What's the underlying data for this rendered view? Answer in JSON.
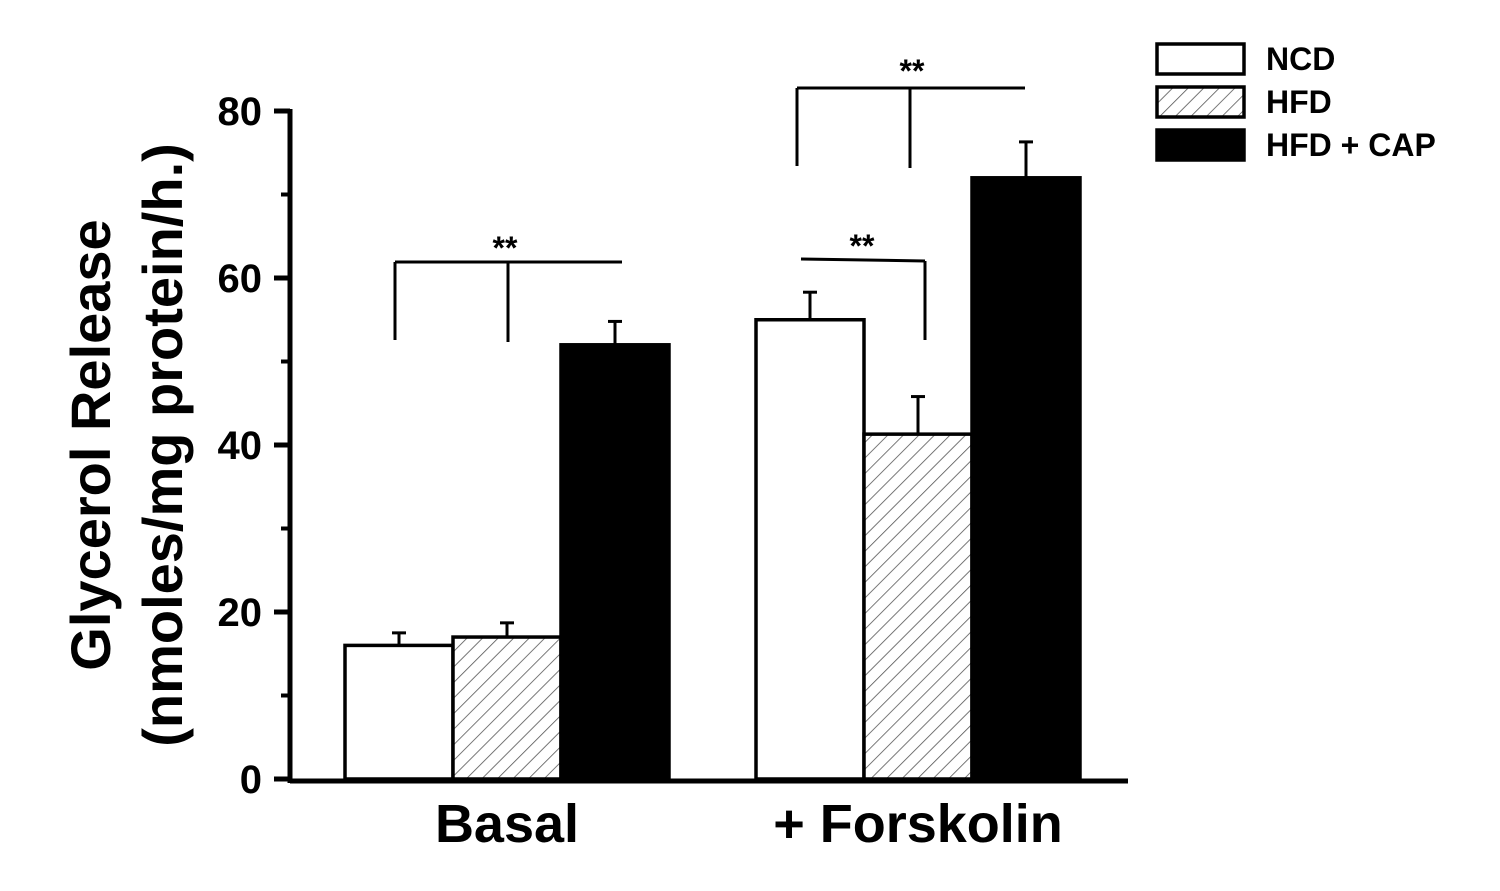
{
  "chart_data": {
    "type": "bar",
    "title": "",
    "xlabel": "",
    "ylabel": [
      "Glycerol Release",
      "(nmoles/mg protein/h.)"
    ],
    "ylim": [
      0,
      80
    ],
    "yticks_major": [
      0,
      20,
      40,
      60,
      80
    ],
    "yticks_minor": [
      10,
      30,
      50,
      70
    ],
    "categories": [
      "Basal",
      "+ Forskolin"
    ],
    "series": [
      {
        "name": "NCD",
        "values": [
          16,
          55
        ],
        "errors": [
          1.5,
          3.3
        ],
        "fill": "white"
      },
      {
        "name": "HFD",
        "values": [
          17,
          41.3
        ],
        "errors": [
          1.7,
          4.5
        ],
        "fill": "hatched"
      },
      {
        "name": "HFD + CAP",
        "values": [
          52,
          72
        ],
        "errors": [
          2.8,
          4.3
        ],
        "fill": "black"
      }
    ],
    "significance": [
      {
        "category": 0,
        "from_series": 0,
        "to_series": 2,
        "label": "**"
      },
      {
        "category": 1,
        "from_series": 0,
        "to_series": 1,
        "label": "**"
      },
      {
        "category": 1,
        "from_series": 0,
        "to_series": 2,
        "label": "**"
      }
    ],
    "legend_position": "top-right",
    "grid": false
  },
  "colors": {
    "axis": "#000000",
    "bar_outline": "#000000",
    "black_fill": "#000000",
    "white_fill": "#ffffff",
    "hatch": "#555555"
  }
}
